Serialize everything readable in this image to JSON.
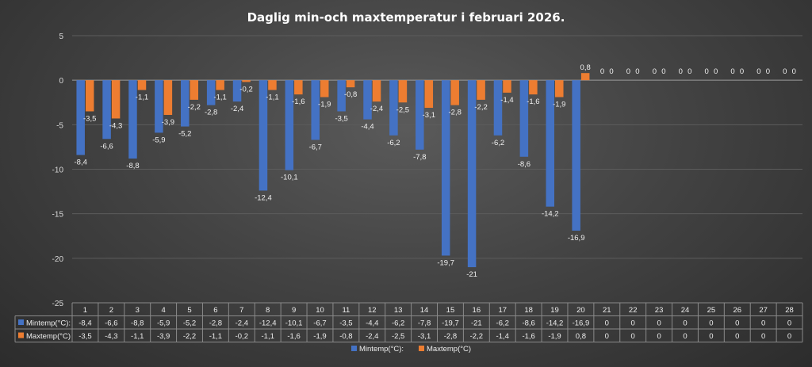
{
  "chart_data": {
    "type": "bar",
    "title": "Daglig min-och maxtemperatur i februari 2026.",
    "categories": [
      "1",
      "2",
      "3",
      "4",
      "5",
      "6",
      "7",
      "8",
      "9",
      "10",
      "11",
      "12",
      "13",
      "14",
      "15",
      "16",
      "17",
      "18",
      "19",
      "20",
      "21",
      "22",
      "23",
      "24",
      "25",
      "26",
      "27",
      "28"
    ],
    "series": [
      {
        "name": "Mintemp(°C):",
        "color": "#4472c4",
        "values": [
          -8.4,
          -6.6,
          -8.8,
          -5.9,
          -5.2,
          -2.8,
          -2.4,
          -12.4,
          -10.1,
          -6.7,
          -3.5,
          -4.4,
          -6.2,
          -7.8,
          -19.7,
          -21,
          -6.2,
          -8.6,
          -14.2,
          -16.9,
          0,
          0,
          0,
          0,
          0,
          0,
          0,
          0
        ],
        "labels": [
          "-8,4",
          "-6,6",
          "-8,8",
          "-5,9",
          "-5,2",
          "-2,8",
          "-2,4",
          "-12,4",
          "-10,1",
          "-6,7",
          "-3,5",
          "-4,4",
          "-6,2",
          "-7,8",
          "-19,7",
          "-21",
          "-6,2",
          "-8,6",
          "-14,2",
          "-16,9",
          "0",
          "0",
          "0",
          "0",
          "0",
          "0",
          "0",
          "0"
        ]
      },
      {
        "name": "Maxtemp(°C)",
        "color": "#ed7d31",
        "values": [
          -3.5,
          -4.3,
          -1.1,
          -3.9,
          -2.2,
          -1.1,
          -0.2,
          -1.1,
          -1.6,
          -1.9,
          -0.8,
          -2.4,
          -2.5,
          -3.1,
          -2.8,
          -2.2,
          -1.4,
          -1.6,
          -1.9,
          0.8,
          0,
          0,
          0,
          0,
          0,
          0,
          0,
          0
        ],
        "labels": [
          "-3,5",
          "-4,3",
          "-1,1",
          "-3,9",
          "-2,2",
          "-1,1",
          "-0,2",
          "-1,1",
          "-1,6",
          "-1,9",
          "-0,8",
          "-2,4",
          "-2,5",
          "-3,1",
          "-2,8",
          "-2,2",
          "-1,4",
          "-1,6",
          "-1,9",
          "0,8",
          "0",
          "0",
          "0",
          "0",
          "0",
          "0",
          "0",
          "0"
        ]
      }
    ],
    "ylim": [
      -25,
      5
    ],
    "yticks": [
      5,
      0,
      -5,
      -10,
      -15,
      -20,
      -25
    ],
    "grid": true,
    "data_table": true,
    "legend_position": "bottom"
  }
}
